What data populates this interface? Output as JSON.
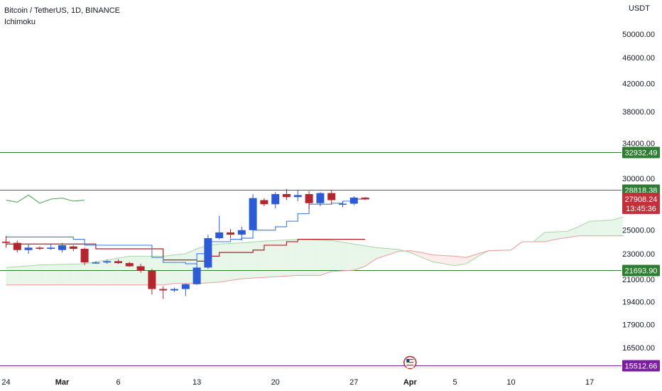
{
  "header": {
    "symbol_line": "Bitcoin / TetherUS, 1D, BINANCE",
    "indicator": "Ichimoku"
  },
  "currency": "USDT",
  "colors": {
    "up": "#2d5bd6",
    "down": "#b4262e",
    "tenkan": "#4a86e8",
    "kijun": "#b01e28",
    "chikou": "#43a047",
    "span_a": "#a5d6a7",
    "span_b": "#ef9a9a",
    "cloud_bull": "#e8f5e9",
    "cloud_bear": "#fdecec",
    "level_green": "#2e7d32",
    "level_purple": "#7b1fa2",
    "last_price": "#c2313a"
  },
  "chart_data": {
    "type": "candlestick",
    "title": "Bitcoin / TetherUS, 1D, BINANCE",
    "y_scale": "log",
    "ylim": [
      15000,
      58000
    ],
    "y_ticks": [
      {
        "value": 50000,
        "label": "50000.00"
      },
      {
        "value": 46000,
        "label": "46000.00"
      },
      {
        "value": 42000,
        "label": "42000.00"
      },
      {
        "value": 38000,
        "label": "38000.00"
      },
      {
        "value": 34000,
        "label": "34000.00"
      },
      {
        "value": 30000,
        "label": "30000.00"
      },
      {
        "value": 25000,
        "label": "25000.00"
      },
      {
        "value": 23000,
        "label": "23000.00"
      },
      {
        "value": 21000,
        "label": "21000.00"
      },
      {
        "value": 19400,
        "label": "19400.00"
      },
      {
        "value": 17900,
        "label": "17900.00"
      },
      {
        "value": 16500,
        "label": "16500.00"
      }
    ],
    "x_ticks": [
      {
        "day": 0,
        "label": "24",
        "bold": false
      },
      {
        "day": 5,
        "label": "Mar",
        "bold": true
      },
      {
        "day": 10,
        "label": "6",
        "bold": false
      },
      {
        "day": 17,
        "label": "13",
        "bold": false
      },
      {
        "day": 24,
        "label": "20",
        "bold": false
      },
      {
        "day": 31,
        "label": "27",
        "bold": false
      },
      {
        "day": 36,
        "label": "Apr",
        "bold": true
      },
      {
        "day": 40,
        "label": "5",
        "bold": false
      },
      {
        "day": 45,
        "label": "10",
        "bold": false
      },
      {
        "day": 52,
        "label": "17",
        "bold": false
      }
    ],
    "candles": [
      {
        "day": 0,
        "o": 24000,
        "h": 24500,
        "l": 23500,
        "c": 23900
      },
      {
        "day": 1,
        "o": 23900,
        "h": 24100,
        "l": 23100,
        "c": 23300
      },
      {
        "day": 2,
        "o": 23300,
        "h": 23800,
        "l": 23000,
        "c": 23500
      },
      {
        "day": 3,
        "o": 23500,
        "h": 23600,
        "l": 23300,
        "c": 23400
      },
      {
        "day": 4,
        "o": 23400,
        "h": 23800,
        "l": 23300,
        "c": 23500
      },
      {
        "day": 5,
        "o": 23300,
        "h": 23900,
        "l": 23100,
        "c": 23700
      },
      {
        "day": 6,
        "o": 23600,
        "h": 23700,
        "l": 23200,
        "c": 23400
      },
      {
        "day": 7,
        "o": 23400,
        "h": 23500,
        "l": 22100,
        "c": 22300
      },
      {
        "day": 8,
        "o": 22300,
        "h": 22400,
        "l": 22200,
        "c": 22300
      },
      {
        "day": 9,
        "o": 22300,
        "h": 22500,
        "l": 22200,
        "c": 22400
      },
      {
        "day": 10,
        "o": 22400,
        "h": 22550,
        "l": 22200,
        "c": 22250
      },
      {
        "day": 11,
        "o": 22250,
        "h": 22350,
        "l": 21950,
        "c": 22000
      },
      {
        "day": 12,
        "o": 22000,
        "h": 22200,
        "l": 21500,
        "c": 21650
      },
      {
        "day": 13,
        "o": 21650,
        "h": 21800,
        "l": 19900,
        "c": 20300
      },
      {
        "day": 14,
        "o": 20300,
        "h": 20500,
        "l": 19600,
        "c": 20200
      },
      {
        "day": 15,
        "o": 20200,
        "h": 20400,
        "l": 20100,
        "c": 20300
      },
      {
        "day": 16,
        "o": 20300,
        "h": 20700,
        "l": 19800,
        "c": 20650
      },
      {
        "day": 17,
        "o": 20650,
        "h": 22200,
        "l": 20600,
        "c": 21900
      },
      {
        "day": 18,
        "o": 21900,
        "h": 24600,
        "l": 21800,
        "c": 24300
      },
      {
        "day": 19,
        "o": 24300,
        "h": 26300,
        "l": 24200,
        "c": 24800
      },
      {
        "day": 20,
        "o": 24800,
        "h": 25100,
        "l": 24300,
        "c": 24600
      },
      {
        "day": 21,
        "o": 24600,
        "h": 25300,
        "l": 24100,
        "c": 25000
      },
      {
        "day": 22,
        "o": 25000,
        "h": 28400,
        "l": 25000,
        "c": 28000
      },
      {
        "day": 23,
        "o": 27800,
        "h": 28000,
        "l": 27200,
        "c": 27400
      },
      {
        "day": 24,
        "o": 27400,
        "h": 28600,
        "l": 27000,
        "c": 28400
      },
      {
        "day": 25,
        "o": 28400,
        "h": 28900,
        "l": 27800,
        "c": 28100
      },
      {
        "day": 26,
        "o": 28100,
        "h": 28800,
        "l": 27700,
        "c": 28300
      },
      {
        "day": 27,
        "o": 28400,
        "h": 28700,
        "l": 26900,
        "c": 27500
      },
      {
        "day": 28,
        "o": 27500,
        "h": 28600,
        "l": 27200,
        "c": 28500
      },
      {
        "day": 29,
        "o": 28500,
        "h": 28800,
        "l": 27400,
        "c": 27800
      },
      {
        "day": 30,
        "o": 27400,
        "h": 27700,
        "l": 27100,
        "c": 27450
      },
      {
        "day": 31,
        "o": 27450,
        "h": 28200,
        "l": 27300,
        "c": 28050
      },
      {
        "day": 32,
        "o": 28050,
        "h": 28100,
        "l": 27800,
        "c": 27908.24
      }
    ],
    "tenkan": [
      [
        0,
        24400
      ],
      [
        5,
        24400
      ],
      [
        6,
        24200
      ],
      [
        7,
        23700
      ],
      [
        12,
        23700
      ],
      [
        13,
        22700
      ],
      [
        14,
        22300
      ],
      [
        16,
        22200
      ],
      [
        17,
        23000
      ],
      [
        18,
        24000
      ],
      [
        20,
        24200
      ],
      [
        21,
        24300
      ],
      [
        22,
        25000
      ],
      [
        24,
        25300
      ],
      [
        25,
        25800
      ],
      [
        26,
        26500
      ],
      [
        27,
        27400
      ],
      [
        29,
        27500
      ],
      [
        30,
        27700
      ],
      [
        31,
        27900
      ],
      [
        32,
        28000
      ]
    ],
    "kijun": [
      [
        0,
        23800
      ],
      [
        7,
        23800
      ],
      [
        8,
        23400
      ],
      [
        13,
        23400
      ],
      [
        14,
        22500
      ],
      [
        16,
        22500
      ],
      [
        17,
        22400
      ],
      [
        18,
        22800
      ],
      [
        19,
        23100
      ],
      [
        22,
        23300
      ],
      [
        23,
        23700
      ],
      [
        25,
        24000
      ],
      [
        26,
        24200
      ],
      [
        32,
        24200
      ]
    ],
    "chikou": [
      [
        0,
        27800
      ],
      [
        1,
        27600
      ],
      [
        2,
        28300
      ],
      [
        3,
        27500
      ],
      [
        4,
        27900
      ],
      [
        5,
        28000
      ],
      [
        6,
        27700
      ],
      [
        7,
        27800
      ]
    ],
    "span_a": [
      [
        0,
        21900
      ],
      [
        3,
        22100
      ],
      [
        7,
        22200
      ],
      [
        11,
        22800
      ],
      [
        14,
        22800
      ],
      [
        16,
        23000
      ],
      [
        17,
        23400
      ],
      [
        18,
        23700
      ],
      [
        19,
        23800
      ],
      [
        21,
        23900
      ],
      [
        23,
        24050
      ],
      [
        26,
        24200
      ],
      [
        29,
        24100
      ],
      [
        31,
        23800
      ],
      [
        33,
        23500
      ],
      [
        35,
        23350
      ],
      [
        36,
        23100
      ],
      [
        38,
        22350
      ],
      [
        40,
        22050
      ],
      [
        41,
        22200
      ],
      [
        42,
        22750
      ],
      [
        43,
        23250
      ],
      [
        45,
        23300
      ],
      [
        46,
        24000
      ],
      [
        47,
        24000
      ],
      [
        48,
        24800
      ],
      [
        50,
        24900
      ],
      [
        51,
        25300
      ],
      [
        52,
        25800
      ],
      [
        54,
        25900
      ],
      [
        55,
        26200
      ]
    ],
    "span_b": [
      [
        0,
        20600
      ],
      [
        14,
        20600
      ],
      [
        15,
        20700
      ],
      [
        17,
        20700
      ],
      [
        19,
        20800
      ],
      [
        21,
        21050
      ],
      [
        22,
        21100
      ],
      [
        24,
        21200
      ],
      [
        26,
        21300
      ],
      [
        28,
        21300
      ],
      [
        29,
        21600
      ],
      [
        31,
        21700
      ],
      [
        32,
        22000
      ],
      [
        33,
        22600
      ],
      [
        35,
        23200
      ],
      [
        36,
        23250
      ],
      [
        37,
        23100
      ],
      [
        38,
        22900
      ],
      [
        40,
        22800
      ],
      [
        41,
        22700
      ],
      [
        43,
        23250
      ],
      [
        45,
        23300
      ],
      [
        46,
        24000
      ],
      [
        48,
        24000
      ],
      [
        49,
        24200
      ],
      [
        51,
        24500
      ],
      [
        55,
        24500
      ]
    ],
    "levels": [
      {
        "value": 32932.49,
        "label": "32932.49",
        "color": "#2e7d32"
      },
      {
        "value": 28818.38,
        "label": "28818.38",
        "color": "#2e7d32"
      },
      {
        "value": 21693.9,
        "label": "21693.90",
        "color": "#2e7d32"
      },
      {
        "value": 15512.66,
        "label": "15512.66",
        "color": "#7b1fa2"
      }
    ],
    "last_price": {
      "value": 27908.24,
      "label": "27908.24",
      "countdown": "13:45:36"
    },
    "event_marker_day": 36
  }
}
